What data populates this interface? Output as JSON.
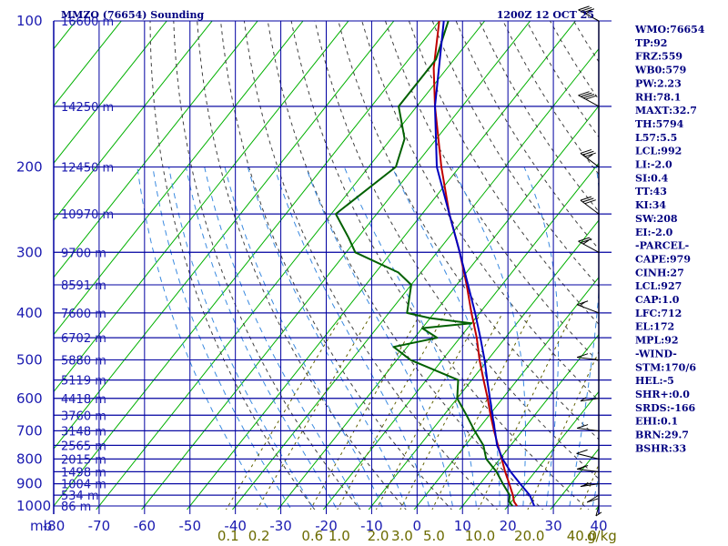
{
  "header": {
    "station": "MMZO (76654) Sounding",
    "time": "1200Z 12 OCT 25"
  },
  "axes": {
    "pressure_unit": "mb",
    "mixing_ratio_unit": "g/kg",
    "mixing_ratio_labels": [
      "0.1",
      "0.2",
      "0.6",
      "1.0",
      "2.0",
      "3.0",
      "5.0",
      "10.0",
      "20.0",
      "40.0"
    ],
    "temperature_labels": [
      "-80",
      "-70",
      "-60",
      "-50",
      "-40",
      "-30",
      "-20",
      "-10",
      "0",
      "10",
      "20",
      "30",
      "40"
    ],
    "pressure_labels": [
      "100",
      "200",
      "300",
      "400",
      "500",
      "600",
      "700",
      "800",
      "900",
      "1000"
    ],
    "height_labels": [
      "16600 m",
      "14250 m",
      "12450 m",
      "10970 m",
      "9700 m",
      "8591 m",
      "7600 m",
      "6702 m",
      "5880 m",
      "5119 m",
      "4418 m",
      "3760 m",
      "3148 m",
      "2565 m",
      "2015 m",
      "1498 m",
      "1004 m",
      "534 m",
      "86 m"
    ]
  },
  "indices": [
    "WMO:76654",
    "TP:92",
    "FRZ:559",
    "WB0:579",
    "PW:2.23",
    "RH:78.1",
    "MAXT:32.7",
    "TH:5794",
    "L57:5.5",
    "LCL:992",
    "LI:-2.0",
    "SI:0.4",
    "TT:43",
    "KI:34",
    "SW:208",
    "EI:-2.0",
    "-PARCEL-",
    "CAPE:979",
    "CINH:27",
    "LCL:927",
    "CAP:1.0",
    "LFC:712",
    "EL:172",
    "MPL:92",
    "-WIND-",
    "STM:170/6",
    "HEL:-5",
    "SHR+:0.0",
    "SRDS:-166",
    "EHI:0.1",
    "BRN:29.7",
    "BSHR:33"
  ],
  "chart_data": {
    "type": "line",
    "title": "MMZO (76654) Sounding",
    "xlabel": "",
    "ylabel": "mb",
    "xlim": [
      -80,
      40
    ],
    "ylim": [
      1000,
      100
    ],
    "y_scale": "log-pressure",
    "grid": true,
    "colors": {
      "temperature": "#c00000",
      "dewpoint": "#006000",
      "parcel": "#0000c0",
      "isotherm": "#00b000",
      "pressure_grid": "#0000a0",
      "dry_adiabat": "#404040",
      "moist_adiabat": "#3a8ae0",
      "wind_barb": "#000000"
    },
    "series": [
      {
        "p": [
          1000,
          980,
          950,
          900,
          850,
          800,
          750,
          700,
          650,
          600,
          550,
          500,
          450,
          400,
          350,
          300,
          250,
          200,
          150,
          125,
          100
        ],
        "values": [
          22.0,
          20.6,
          19.2,
          16.4,
          13.4,
          10.4,
          7.2,
          3.8,
          0.3,
          -3.3,
          -7.4,
          -11.8,
          -16.3,
          -21.8,
          -27.8,
          -35.0,
          -44.0,
          -54.0,
          -66.0,
          -73.0,
          -80.0
        ]
      },
      {
        "p": [
          1000,
          980,
          950,
          900,
          850,
          800,
          750,
          700,
          650,
          600,
          550,
          500,
          470,
          450,
          430,
          420,
          410,
          400,
          350,
          330,
          300,
          280,
          250,
          200,
          175,
          150,
          120,
          100
        ],
        "values": [
          21.0,
          19.5,
          18.5,
          15.0,
          11.5,
          7.0,
          4.0,
          -0.5,
          -5.0,
          -10.0,
          -13.0,
          -27.0,
          -33.0,
          -25.0,
          -30.0,
          -20.0,
          -30.0,
          -36.0,
          -40.0,
          -45.0,
          -58.0,
          -62.0,
          -69.0,
          -64.0,
          -67.0,
          -74.0,
          -74.0,
          -78.0
        ]
      },
      {
        "p": [
          1000,
          950,
          900,
          850,
          800,
          750,
          700,
          650,
          600,
          550,
          500,
          450,
          400,
          350,
          300,
          250,
          200,
          150,
          100
        ],
        "values": [
          25.8,
          22.9,
          18.8,
          14.6,
          10.6,
          7.0,
          4.0,
          0.7,
          -2.8,
          -6.6,
          -10.7,
          -15.5,
          -21.0,
          -27.5,
          -35.0,
          -44.0,
          -55.0,
          -66.0,
          -79.0
        ]
      }
    ],
    "mixing_ratio_gkg": [
      0.1,
      0.2,
      0.6,
      1.0,
      2.0,
      3.0,
      5.0,
      10.0,
      20.0,
      40.0
    ],
    "wind_profile": [
      {
        "p": 1000,
        "dir": 200,
        "spd": 5
      },
      {
        "p": 950,
        "dir": 220,
        "spd": 10
      },
      {
        "p": 900,
        "dir": 240,
        "spd": 15
      },
      {
        "p": 850,
        "dir": 260,
        "spd": 15
      },
      {
        "p": 800,
        "dir": 270,
        "spd": 10
      },
      {
        "p": 700,
        "dir": 260,
        "spd": 10
      },
      {
        "p": 600,
        "dir": 240,
        "spd": 5
      },
      {
        "p": 500,
        "dir": 260,
        "spd": 10
      },
      {
        "p": 400,
        "dir": 280,
        "spd": 15
      },
      {
        "p": 300,
        "dir": 290,
        "spd": 25
      },
      {
        "p": 250,
        "dir": 300,
        "spd": 30
      },
      {
        "p": 200,
        "dir": 300,
        "spd": 35
      },
      {
        "p": 150,
        "dir": 290,
        "spd": 40
      },
      {
        "p": 100,
        "dir": 290,
        "spd": 35
      }
    ]
  }
}
